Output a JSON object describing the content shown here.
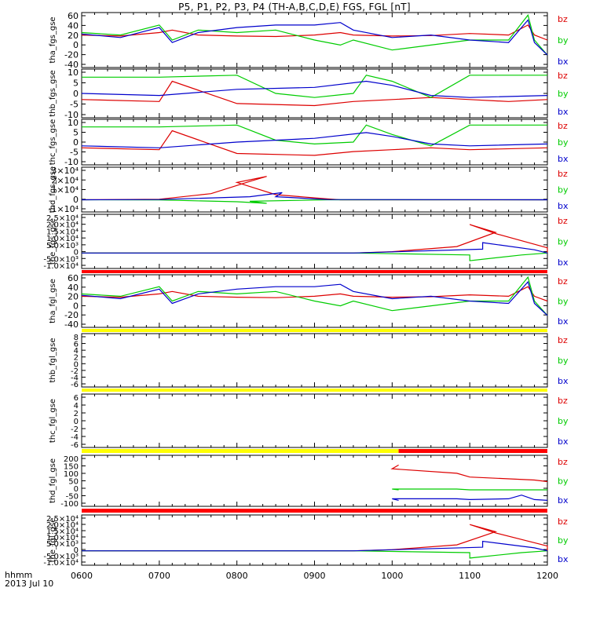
{
  "title": "P5, P1, P2, P3, P4 (TH-A,B,C,D,E) FGS, FGL [nT]",
  "footer": {
    "label": "hhmm",
    "date": "2013 Jul 10"
  },
  "colors": {
    "bz": "#dd0000",
    "by": "#00cc00",
    "bx": "#0000cc",
    "yellow_bar": "#ffff00",
    "red_bar": "#ff0000"
  },
  "chart_data": {
    "type": "line",
    "x_ticks": [
      "0600",
      "0700",
      "0800",
      "0900",
      "1000",
      "1100",
      "1200"
    ],
    "x_range": [
      "0600",
      "1200"
    ],
    "legend": [
      "bz",
      "by",
      "bx"
    ],
    "panels": [
      {
        "ylabel": "tha_fgs_gse",
        "yticks": [
          "60",
          "40",
          "20",
          "0",
          "-20",
          "-40"
        ],
        "ylim": [
          -45,
          65
        ],
        "series": [
          {
            "name": "bz",
            "x": [
              "0600",
              "0630",
              "0700",
              "0710",
              "0730",
              "0800",
              "0830",
              "0900",
              "0920",
              "0930",
              "1000",
              "1030",
              "1100",
              "1130",
              "1145",
              "1150",
              "1200"
            ],
            "y": [
              20,
              18,
              25,
              30,
              20,
              18,
              17,
              20,
              25,
              20,
              18,
              19,
              23,
              20,
              40,
              20,
              10
            ]
          },
          {
            "name": "by",
            "x": [
              "0600",
              "0630",
              "0700",
              "0710",
              "0730",
              "0800",
              "0830",
              "0900",
              "0920",
              "0930",
              "1000",
              "1030",
              "1100",
              "1130",
              "1145",
              "1150",
              "1200"
            ],
            "y": [
              25,
              20,
              40,
              10,
              30,
              25,
              30,
              10,
              0,
              10,
              -10,
              0,
              10,
              10,
              60,
              10,
              -20
            ]
          },
          {
            "name": "bx",
            "x": [
              "0600",
              "0630",
              "0700",
              "0710",
              "0730",
              "0800",
              "0830",
              "0900",
              "0920",
              "0930",
              "1000",
              "1030",
              "1100",
              "1130",
              "1145",
              "1150",
              "1200"
            ],
            "y": [
              22,
              15,
              35,
              5,
              25,
              35,
              40,
              40,
              45,
              30,
              15,
              20,
              10,
              5,
              50,
              5,
              -20
            ]
          }
        ]
      },
      {
        "ylabel": "thb_fgs_gse",
        "yticks": [
          "10",
          "5",
          "0",
          "-5",
          "-10"
        ],
        "ylim": [
          -12,
          12
        ],
        "series": [
          {
            "name": "bz",
            "x": [
              "0600",
              "0700",
              "0710",
              "0800",
              "0900",
              "0930",
              "1000",
              "1030",
              "1100",
              "1130",
              "1200"
            ],
            "y": [
              -3,
              -4,
              6,
              -5,
              -6,
              -4,
              -3,
              -2,
              -3,
              -4,
              -3
            ]
          },
          {
            "name": "by",
            "x": [
              "0600",
              "0700",
              "0800",
              "0830",
              "0900",
              "0930",
              "0940",
              "1000",
              "1030",
              "1100",
              "1200"
            ],
            "y": [
              8,
              8,
              9,
              0,
              -2,
              0,
              9,
              6,
              -2,
              9,
              9
            ]
          },
          {
            "name": "bx",
            "x": [
              "0600",
              "0700",
              "0800",
              "0900",
              "0940",
              "1000",
              "1030",
              "1100",
              "1200"
            ],
            "y": [
              0,
              -1,
              2,
              3,
              6,
              4,
              -1,
              -2,
              -1
            ]
          }
        ]
      },
      {
        "ylabel": "thc_fgs_gse",
        "yticks": [
          "10",
          "5",
          "0",
          "-5",
          "-10"
        ],
        "ylim": [
          -12,
          12
        ],
        "series": [
          {
            "name": "bz",
            "x": [
              "0600",
              "0700",
              "0710",
              "0800",
              "0900",
              "0930",
              "1000",
              "1030",
              "1100",
              "1200"
            ],
            "y": [
              -3,
              -4,
              6,
              -6,
              -7,
              -5,
              -4,
              -3,
              -4,
              -3
            ]
          },
          {
            "name": "by",
            "x": [
              "0600",
              "0700",
              "0800",
              "0830",
              "0900",
              "0930",
              "0940",
              "1000",
              "1030",
              "1100",
              "1200"
            ],
            "y": [
              8,
              8,
              9,
              1,
              -1,
              0,
              9,
              4,
              -2,
              9,
              9
            ]
          },
          {
            "name": "bx",
            "x": [
              "0600",
              "0700",
              "0800",
              "0900",
              "0940",
              "1000",
              "1030",
              "1100",
              "1200"
            ],
            "y": [
              -2,
              -3,
              0,
              2,
              5,
              3,
              -1,
              -2,
              -1
            ]
          }
        ]
      },
      {
        "ylabel": "thd_fgs_gse",
        "yticks": [
          "3×10⁴",
          "2×10⁴",
          "1×10⁴",
          "0",
          "-1×10⁴"
        ],
        "ylim": [
          -12000,
          32000
        ],
        "series": [
          {
            "name": "bz",
            "x": [
              "0600",
              "0700",
              "0740",
              "0770",
              "0783",
              "0800",
              "0830",
              "0870",
              "0920",
              "1200"
            ],
            "y": [
              0,
              500,
              6000,
              18000,
              23000,
              17000,
              5000,
              800,
              0,
              0
            ]
          },
          {
            "name": "by",
            "x": [
              "0600",
              "0700",
              "0760",
              "0783",
              "0810",
              "0870",
              "1200"
            ],
            "y": [
              0,
              -200,
              -2000,
              -3500,
              -1500,
              0,
              0
            ]
          },
          {
            "name": "bx",
            "x": [
              "0600",
              "0700",
              "0770",
              "0795",
              "0830",
              "0870",
              "1200"
            ],
            "y": [
              0,
              200,
              3000,
              7000,
              3000,
              200,
              0
            ]
          }
        ]
      },
      {
        "ylabel": "the_fgs_gse",
        "yticks": [
          "2.5×10⁴",
          "2.0×10⁴",
          "1.5×10⁴",
          "1.0×10⁴",
          "5.0×10³",
          "0",
          "-5.0×10³",
          "-1.0×10⁴"
        ],
        "ylim": [
          -12000,
          30000
        ],
        "series": [
          {
            "name": "bz",
            "x": [
              "0600",
              "0930",
              "1000",
              "1050",
              "1080",
              "1100",
              "1120",
              "1160",
              "1200"
            ],
            "y": [
              0,
              0,
              1000,
              5000,
              16000,
              22000,
              15000,
              4000,
              500
            ]
          },
          {
            "name": "by",
            "x": [
              "0600",
              "0930",
              "1060",
              "1100",
              "1140",
              "1200"
            ],
            "y": [
              0,
              0,
              -1500,
              -6000,
              -1500,
              0
            ]
          },
          {
            "name": "bx",
            "x": [
              "0600",
              "0930",
              "1070",
              "1110",
              "1150",
              "1200"
            ],
            "y": [
              0,
              0,
              3000,
              8000,
              2500,
              0
            ]
          }
        ]
      },
      {
        "ylabel": "tha_fgl_gse",
        "yticks": [
          "60",
          "40",
          "20",
          "0",
          "-20",
          "-40"
        ],
        "ylim": [
          -45,
          65
        ],
        "series": [
          {
            "name": "bz",
            "x": [
              "0600",
              "0630",
              "0700",
              "0710",
              "0730",
              "0800",
              "0830",
              "0900",
              "0920",
              "0930",
              "1000",
              "1030",
              "1100",
              "1130",
              "1145",
              "1150",
              "1200"
            ],
            "y": [
              20,
              18,
              25,
              30,
              20,
              18,
              17,
              20,
              25,
              20,
              18,
              19,
              23,
              20,
              40,
              20,
              10
            ]
          },
          {
            "name": "by",
            "x": [
              "0600",
              "0630",
              "0700",
              "0710",
              "0730",
              "0800",
              "0830",
              "0900",
              "0920",
              "0930",
              "1000",
              "1030",
              "1100",
              "1130",
              "1145",
              "1150",
              "1200"
            ],
            "y": [
              25,
              20,
              40,
              10,
              30,
              25,
              30,
              10,
              0,
              10,
              -10,
              0,
              10,
              10,
              60,
              10,
              -20
            ]
          },
          {
            "name": "bx",
            "x": [
              "0600",
              "0630",
              "0700",
              "0710",
              "0730",
              "0800",
              "0830",
              "0900",
              "0920",
              "0930",
              "1000",
              "1030",
              "1100",
              "1130",
              "1145",
              "1150",
              "1200"
            ],
            "y": [
              22,
              15,
              35,
              5,
              25,
              35,
              40,
              40,
              45,
              30,
              15,
              20,
              10,
              5,
              50,
              5,
              -20
            ]
          }
        ]
      },
      {
        "ylabel": "thb_fgl_gse",
        "yticks": [
          "8",
          "6",
          "4",
          "2",
          "0",
          "-2",
          "-4",
          "-6"
        ],
        "ylim": [
          -7,
          9
        ],
        "series": []
      },
      {
        "ylabel": "thc_fgl_gse",
        "yticks": [
          "6",
          "4",
          "2",
          "0",
          "-2",
          "-4",
          "-6"
        ],
        "ylim": [
          -7,
          7
        ],
        "series": []
      },
      {
        "ylabel": "thd_fgl_gse",
        "yticks": [
          "200",
          "150",
          "100",
          "50",
          "0",
          "-50",
          "-100"
        ],
        "ylim": [
          -120,
          220
        ],
        "series": [
          {
            "name": "bz",
            "x": [
              "0965",
              "1000",
              "1050",
              "1100",
              "1150",
              "1200"
            ],
            "y": [
              155,
              130,
              100,
              75,
              55,
              45
            ]
          },
          {
            "name": "by",
            "x": [
              "0965",
              "1000",
              "1050",
              "1100",
              "1150",
              "1200"
            ],
            "y": [
              -10,
              -5,
              -5,
              -10,
              -10,
              -10
            ]
          },
          {
            "name": "bx",
            "x": [
              "0965",
              "1000",
              "1050",
              "1100",
              "1130",
              "1140",
              "1150",
              "1200"
            ],
            "y": [
              -80,
              -70,
              -70,
              -75,
              -70,
              -45,
              -75,
              -80
            ]
          }
        ]
      },
      {
        "ylabel": "the_fgl_gse",
        "yticks": [
          "2.5×10⁴",
          "2.0×10⁴",
          "1.5×10⁴",
          "1.0×10⁴",
          "5.0×10³",
          "0",
          "-5.0×10³",
          "-1.0×10⁴"
        ],
        "ylim": [
          -12000,
          30000
        ],
        "series": [
          {
            "name": "bz",
            "x": [
              "0600",
              "0930",
              "1000",
              "1050",
              "1080",
              "1100",
              "1120",
              "1160",
              "1200"
            ],
            "y": [
              0,
              0,
              1000,
              5000,
              16000,
              22000,
              15000,
              4000,
              500
            ]
          },
          {
            "name": "by",
            "x": [
              "0600",
              "0930",
              "1060",
              "1100",
              "1140",
              "1200"
            ],
            "y": [
              0,
              0,
              -1500,
              -6000,
              -1500,
              0
            ]
          },
          {
            "name": "bx",
            "x": [
              "0600",
              "0930",
              "1070",
              "1110",
              "1150",
              "1200"
            ],
            "y": [
              0,
              0,
              3000,
              8000,
              2500,
              0
            ]
          }
        ]
      }
    ],
    "status_bars": [
      {
        "after_panel": 5,
        "segments": [
          {
            "from": "0600",
            "to": "1200",
            "color": "red"
          }
        ]
      },
      {
        "after_panel": 6,
        "segments": [
          {
            "from": "0600",
            "to": "1200",
            "color": "yellow"
          }
        ]
      },
      {
        "after_panel": 7,
        "segments": [
          {
            "from": "0600",
            "to": "1200",
            "color": "yellow"
          }
        ]
      },
      {
        "after_panel": 8,
        "segments": [
          {
            "from": "0600",
            "to": "0965",
            "color": "yellow"
          },
          {
            "from": "0965",
            "to": "1200",
            "color": "red"
          }
        ]
      },
      {
        "after_panel": 9,
        "segments": [
          {
            "from": "0600",
            "to": "1200",
            "color": "red"
          }
        ]
      }
    ]
  }
}
